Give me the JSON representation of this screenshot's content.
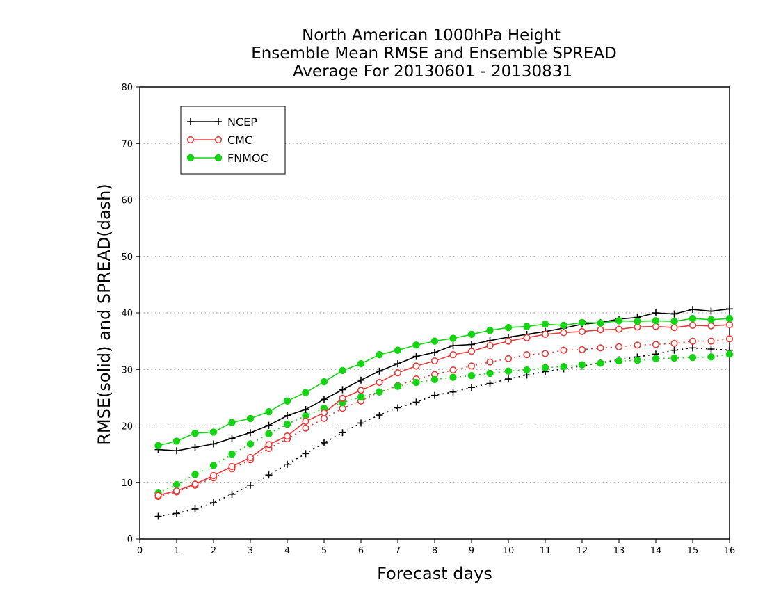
{
  "colors": {
    "NCEP": "#000000",
    "CMC": "#e83c3c",
    "FNMOC": "#14d414",
    "grid": "#9a9a9a",
    "background": "#ffffff"
  },
  "chart_data": {
    "type": "line",
    "title": [
      "North American 1000hPa Height",
      "Ensemble Mean RMSE and Ensemble SPREAD",
      "Average For 20130601 - 20130831"
    ],
    "xlabel": "Forecast days",
    "ylabel": "RMSE(solid) and SPREAD(dash)",
    "xlim": [
      0,
      16
    ],
    "ylim": [
      0,
      80
    ],
    "xticks": [
      0,
      1,
      2,
      3,
      4,
      5,
      6,
      7,
      8,
      9,
      10,
      11,
      12,
      13,
      14,
      15,
      16
    ],
    "yticks": [
      0,
      10,
      20,
      30,
      40,
      50,
      60,
      70,
      80
    ],
    "grid": "horizontal dotted",
    "legend_position": "top-left",
    "x": [
      0.5,
      1,
      1.5,
      2,
      2.5,
      3,
      3.5,
      4,
      4.5,
      5,
      5.5,
      6,
      6.5,
      7,
      7.5,
      8,
      8.5,
      9,
      9.5,
      10,
      10.5,
      11,
      11.5,
      12,
      12.5,
      13,
      13.5,
      14,
      14.5,
      15,
      15.5,
      16
    ],
    "series": [
      {
        "name": "NCEP",
        "style": "solid",
        "marker": "plus",
        "values": [
          15.8,
          15.6,
          16.2,
          16.8,
          17.8,
          18.8,
          20.1,
          21.8,
          22.9,
          24.7,
          26.4,
          28.1,
          29.7,
          31.0,
          32.3,
          33.0,
          34.2,
          34.4,
          35.1,
          35.7,
          36.2,
          36.7,
          37.3,
          38.0,
          38.3,
          38.9,
          39.2,
          40.0,
          39.8,
          40.6,
          40.3,
          40.7
        ]
      },
      {
        "name": "CMC",
        "style": "solid",
        "marker": "circle-open",
        "values": [
          7.7,
          8.5,
          9.7,
          11.2,
          12.8,
          14.4,
          16.7,
          18.2,
          20.8,
          22.3,
          24.9,
          26.3,
          27.7,
          29.4,
          30.6,
          31.5,
          32.6,
          33.2,
          34.2,
          35.0,
          35.6,
          36.2,
          36.5,
          36.7,
          37.0,
          37.1,
          37.5,
          37.6,
          37.4,
          37.8,
          37.7,
          37.9
        ]
      },
      {
        "name": "FNMOC",
        "style": "solid",
        "marker": "circle-filled",
        "values": [
          16.5,
          17.3,
          18.7,
          18.9,
          20.6,
          21.3,
          22.5,
          24.4,
          25.9,
          27.8,
          29.8,
          31.0,
          32.6,
          33.4,
          34.3,
          35.0,
          35.5,
          36.2,
          36.9,
          37.4,
          37.6,
          38.0,
          37.8,
          38.3,
          38.2,
          38.6,
          38.5,
          38.6,
          38.5,
          39.0,
          38.8,
          39.0
        ]
      },
      {
        "name": "NCEP",
        "style": "dash",
        "marker": "plus",
        "values": [
          4.0,
          4.5,
          5.3,
          6.4,
          7.9,
          9.5,
          11.3,
          13.2,
          15.1,
          17.0,
          18.8,
          20.5,
          21.9,
          23.2,
          24.2,
          25.4,
          26.0,
          26.8,
          27.5,
          28.3,
          29.0,
          29.6,
          30.1,
          30.6,
          31.2,
          31.7,
          32.2,
          32.7,
          33.4,
          33.8,
          33.6,
          33.4
        ]
      },
      {
        "name": "CMC",
        "style": "dash",
        "marker": "circle-open",
        "values": [
          7.5,
          8.3,
          9.5,
          10.8,
          12.4,
          14.0,
          16.0,
          17.7,
          19.6,
          21.3,
          23.1,
          24.4,
          26.0,
          27.1,
          28.3,
          29.1,
          29.9,
          30.6,
          31.3,
          31.9,
          32.6,
          32.8,
          33.4,
          33.5,
          33.8,
          34.0,
          34.3,
          34.4,
          34.6,
          35.0,
          35.0,
          35.4
        ]
      },
      {
        "name": "FNMOC",
        "style": "dash",
        "marker": "circle-filled",
        "values": [
          8.1,
          9.6,
          11.4,
          13.0,
          15.0,
          16.8,
          18.6,
          20.3,
          21.8,
          23.1,
          24.1,
          25.1,
          26.0,
          27.0,
          27.7,
          28.2,
          28.6,
          28.9,
          29.3,
          29.7,
          29.9,
          30.3,
          30.5,
          30.8,
          31.1,
          31.5,
          31.6,
          31.9,
          32.0,
          32.1,
          32.2,
          32.7
        ]
      }
    ]
  }
}
